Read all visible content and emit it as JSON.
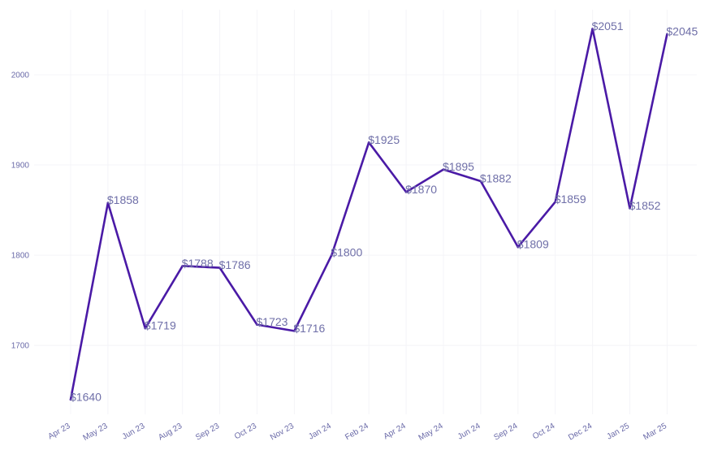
{
  "chart_data": {
    "type": "line",
    "title": "",
    "xlabel": "",
    "ylabel": "",
    "categories": [
      "Apr 23",
      "May 23",
      "Jun 23",
      "Aug 23",
      "Sep 23",
      "Oct 23",
      "Nov 23",
      "Jan 24",
      "Feb 24",
      "Apr 24",
      "May 24",
      "Jun 24",
      "Sep 24",
      "Oct 24",
      "Dec 24",
      "Jan 25",
      "Mar 25"
    ],
    "values": [
      1640,
      1858,
      1719,
      1788,
      1786,
      1723,
      1716,
      1800,
      1925,
      1870,
      1895,
      1882,
      1809,
      1859,
      2051,
      1852,
      2045
    ],
    "data_labels": [
      "$1640",
      "$1858",
      "$1719",
      "$1788",
      "$1786",
      "$1723",
      "$1716",
      "$1800",
      "$1925",
      "$1870",
      "$1895",
      "$1882",
      "$1809",
      "$1859",
      "$2051",
      "$1852",
      "$2045"
    ],
    "yticks": [
      "1700",
      "1800",
      "1900",
      "2000"
    ],
    "ytick_values": [
      1700,
      1800,
      1900,
      2000
    ],
    "ylim": [
      1620,
      2072
    ],
    "grid": true,
    "legend": false,
    "line_color": "#4a1aa6"
  }
}
